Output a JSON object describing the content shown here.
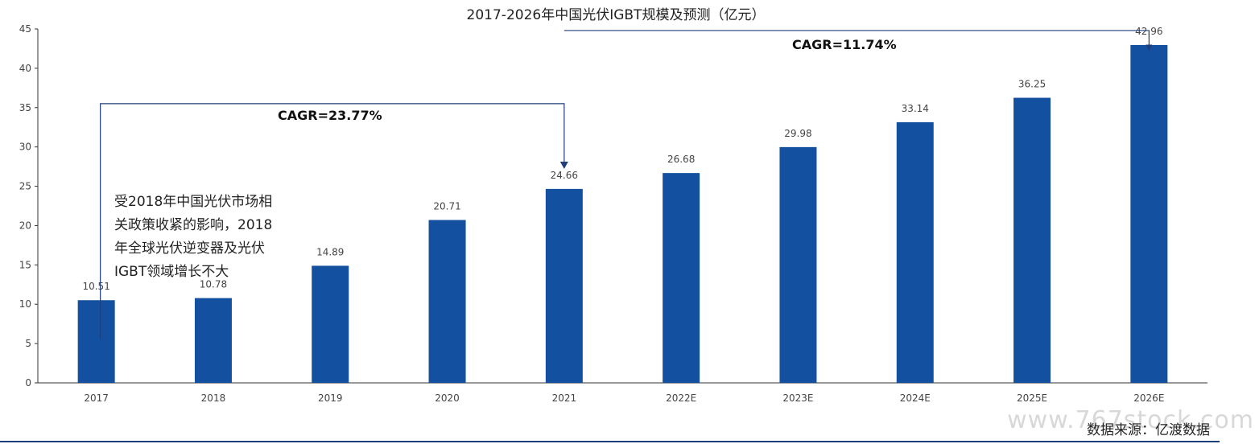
{
  "chart_data": {
    "type": "bar",
    "title": "2017-2026年中国光伏IGBT规模及预测（亿元）",
    "categories": [
      "2017",
      "2018",
      "2019",
      "2020",
      "2021",
      "2022E",
      "2023E",
      "2024E",
      "2025E",
      "2026E"
    ],
    "values": [
      10.51,
      10.78,
      14.89,
      20.71,
      24.66,
      26.68,
      29.98,
      33.14,
      36.25,
      42.96
    ],
    "value_labels": [
      "10.51",
      "10.78",
      "14.89",
      "20.71",
      "24.66",
      "26.68",
      "29.98",
      "33.14",
      "36.25",
      "42.96"
    ],
    "ylim": [
      0,
      45
    ],
    "yticks": [
      0,
      5,
      10,
      15,
      20,
      25,
      30,
      35,
      40,
      45
    ],
    "xlabel": "",
    "ylabel": "",
    "grid": false,
    "bar_color": "#1450A0",
    "annotations": {
      "cagr1": {
        "text": "CAGR=23.77%",
        "from": "2017",
        "to": "2021"
      },
      "cagr2": {
        "text": "CAGR=11.74%",
        "from": "2021",
        "to": "2026E"
      },
      "note_lines": [
        "受2018年中国光伏市场相",
        "关政策收紧的影响，2018",
        "年全球光伏逆变器及光伏",
        "IGBT领域增长不大"
      ]
    }
  },
  "source": "数据来源：亿渡数据",
  "watermark": "www.767stock.com"
}
